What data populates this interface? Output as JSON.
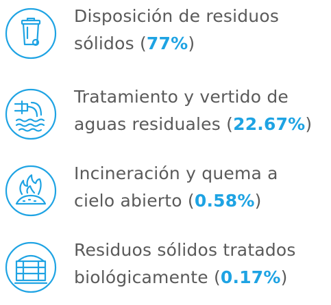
{
  "items": [
    {
      "line1": "Disposición de residuos",
      "line2": "sólidos (",
      "value": "77%",
      "end": ")"
    },
    {
      "line1": "Tratamiento y vertido de",
      "line2": "aguas residuales (",
      "value": "22.67%",
      "end": ")"
    },
    {
      "line1": "Incineración y quema a",
      "line2": "cielo abierto (",
      "value": "0.58%",
      "end": ")"
    },
    {
      "line1": "Residuos sólidos tratados",
      "line2": "biológicamente (",
      "value": "0.17%",
      "end": ")"
    }
  ]
}
